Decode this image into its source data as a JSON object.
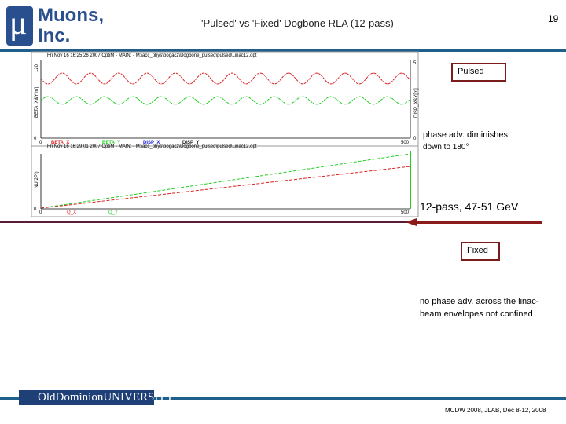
{
  "header": {
    "logo_line1": "Muons,",
    "logo_line2": "Inc.",
    "logo_symbol": "μ",
    "title": "'Pulsed' vs 'Fixed' Dogbone RLA (12-pass)",
    "page_number": "19"
  },
  "plots": [
    {
      "caption": "Fri Nov 16 16:25:26 2007    OptiM - MAIN: - M:\\acc_phys\\bogacz\\Dogbone_pulsed\\pulsed\\Linac12.opt",
      "left_axis_label": "BETA_X&Y[m]",
      "right_axis_label": "DISP_X&Y[m]",
      "left_ticks": [
        "120",
        "0"
      ],
      "right_ticks": [
        "5",
        "0"
      ],
      "x_ticks": [
        "0",
        "500"
      ],
      "legend": [
        "BETA_X",
        "BETA_Y",
        "DISP_X",
        "DISP_Y"
      ]
    },
    {
      "caption": "Fri Nov 16 16:29:01 2007    OptiM - MAIN: - M:\\acc_phys\\bogacz\\Dogbone_pulsed\\pulsed\\Linac12.opt",
      "left_axis_label": "NU(2PI)",
      "right_axis_label": "",
      "left_ticks": [
        "0"
      ],
      "right_ticks": [],
      "x_ticks": [
        "0",
        "500"
      ],
      "legend": [
        "Q_X",
        "Q_Y"
      ]
    }
  ],
  "annotations": {
    "pulsed_label": "Pulsed",
    "pulsed_note_1": "phase adv. diminishes",
    "pulsed_note_2": "down to 180°",
    "energy": "12-pass, 47-51 GeV",
    "fixed_label": "Fixed",
    "fixed_note_1": "no phase adv. across the linac-",
    "fixed_note_2": "beam envelopes not confined"
  },
  "footer": {
    "university_1": "Old",
    "university_2": "Dominion",
    "university_3": "UNIVERSITY",
    "conference": "MCDW 2008, JLAB, Dec 8-12, 2008"
  }
}
